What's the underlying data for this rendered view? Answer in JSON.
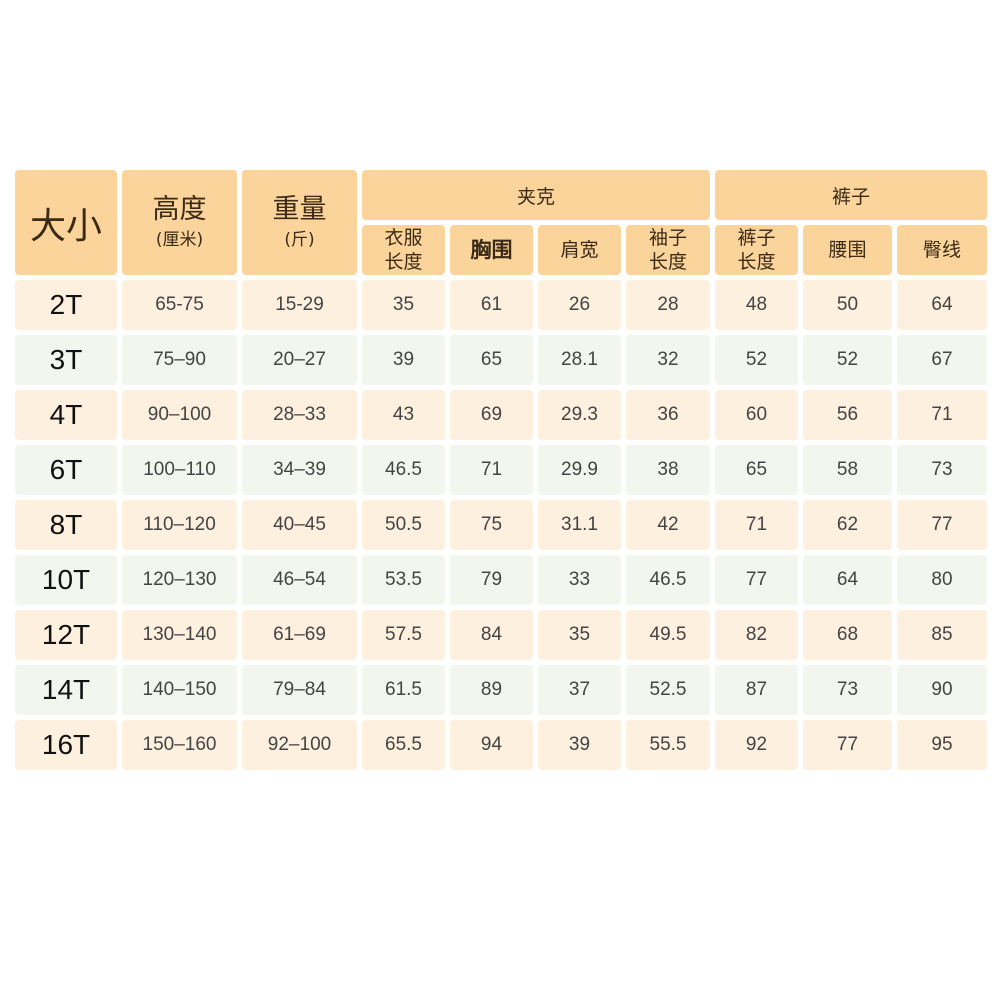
{
  "header": {
    "size": "大小",
    "height": {
      "label": "高度",
      "unit": "(厘米)"
    },
    "weight": {
      "label": "重量",
      "unit": "(斤)"
    },
    "jacket": {
      "label": "夹克",
      "columns": [
        [
          "衣服",
          "长度"
        ],
        [
          "胸围"
        ],
        [
          "肩宽"
        ],
        [
          "袖子",
          "长度"
        ]
      ]
    },
    "pants": {
      "label": "裤子",
      "columns": [
        [
          "裤子",
          "长度"
        ],
        [
          "腰围"
        ],
        [
          "臀线"
        ]
      ]
    }
  },
  "rows": [
    [
      "2T",
      "65-75",
      "15-29",
      "35",
      "61",
      "26",
      "28",
      "48",
      "50",
      "64"
    ],
    [
      "3T",
      "75–90",
      "20–27",
      "39",
      "65",
      "28.1",
      "32",
      "52",
      "52",
      "67"
    ],
    [
      "4T",
      "90–100",
      "28–33",
      "43",
      "69",
      "29.3",
      "36",
      "60",
      "56",
      "71"
    ],
    [
      "6T",
      "100–110",
      "34–39",
      "46.5",
      "71",
      "29.9",
      "38",
      "65",
      "58",
      "73"
    ],
    [
      "8T",
      "110–120",
      "40–45",
      "50.5",
      "75",
      "31.1",
      "42",
      "71",
      "62",
      "77"
    ],
    [
      "10T",
      "120–130",
      "46–54",
      "53.5",
      "79",
      "33",
      "46.5",
      "77",
      "64",
      "80"
    ],
    [
      "12T",
      "130–140",
      "61–69",
      "57.5",
      "84",
      "35",
      "49.5",
      "82",
      "68",
      "85"
    ],
    [
      "14T",
      "140–150",
      "79–84",
      "61.5",
      "89",
      "37",
      "52.5",
      "87",
      "73",
      "90"
    ],
    [
      "16T",
      "150–160",
      "92–100",
      "65.5",
      "94",
      "39",
      "55.5",
      "92",
      "77",
      "95"
    ]
  ],
  "colors": {
    "header": "#fbd49b",
    "row_odd": "#fdf0df",
    "row_even": "#f3f6ef"
  }
}
